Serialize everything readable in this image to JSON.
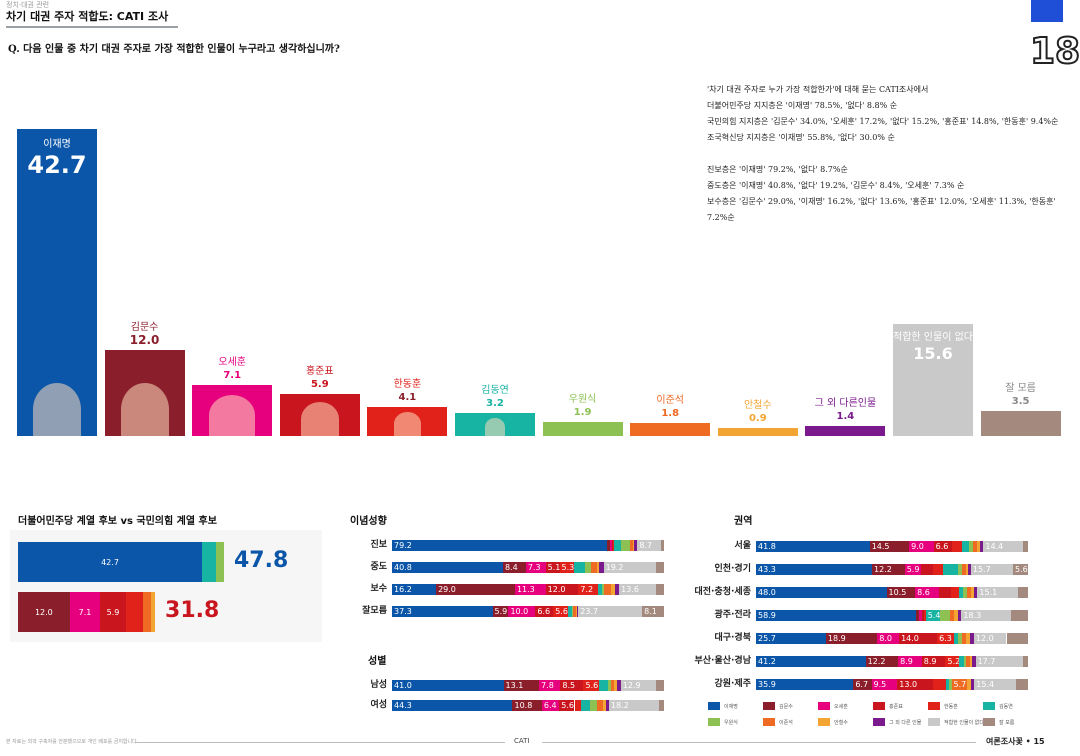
{
  "header": {
    "kicker": "정치·대권 관련",
    "title": "차기 대권 주자 적합도: CATI 조사",
    "question": "Q. 다음 인물 중 차기 대권 주자로 가장 적합한 인물이 누구라고 생각하십니까?",
    "page_badge": "18"
  },
  "summary": [
    "'차기 대권 주자로 누가 가장 적합한가'에 대해 묻는 CATI조사에서",
    "더불어민주당 지지층은 '이재명' 78.5%, '없다' 8.8% 순",
    "국민의힘 지지층은 '김문수' 34.0%, '오세훈' 17.2%, '없다' 15.2%, '홍준표' 14.8%, '한동훈' 9.4%순",
    "조국혁신당 지지층은 '이재명' 55.8%, '없다' 30.0% 순",
    "",
    "진보층은 '이재명' 79.2%, '없다' 8.7%순",
    "중도층은 '이재명' 40.8%, '없다' 19.2%, '김문수' 8.4%, '오세훈' 7.3% 순",
    "보수층은 '김문수' 29.0%, '이재명' 16.2%, '없다' 13.6%, '홍준표' 12.0%, '오세훈' 11.3%, '한동훈' 7.2%순"
  ],
  "colors": {
    "이재명": "#0b56a8",
    "김문수": "#8a1f2b",
    "오세훈": "#e6007e",
    "홍준표": "#c9151e",
    "한동훈": "#e0221b",
    "김동연": "#17b3a3",
    "우원식": "#8dc153",
    "이준석": "#ef6a22",
    "안철수": "#f2a533",
    "그 외 다른 인물": "#7b1a8c",
    "적합한 인물이 없다": "#c9c9c9",
    "잘 모름": "#a4897e"
  },
  "chart_data": [
    {
      "type": "bar",
      "categories": [
        "이재명",
        "김문수",
        "오세훈",
        "홍준표",
        "한동훈",
        "김동연",
        "우원식",
        "이준석",
        "안철수",
        "그 외 다른인물",
        "적합한 인물이 없다",
        "잘 모름"
      ],
      "values": [
        42.7,
        12.0,
        7.1,
        5.9,
        4.1,
        3.2,
        1.9,
        1.8,
        0.9,
        1.4,
        15.6,
        3.5
      ],
      "value_labels": [
        "42.7",
        "12.0",
        "7.1",
        "5.9",
        "4.1",
        "3.2",
        "1.9",
        "1.8",
        "0.9",
        "1.4",
        "15.6",
        "3.5"
      ],
      "ylim": [
        0,
        42.7
      ]
    },
    {
      "type": "bar",
      "title": "더불어민주당 계열 후보 vs 국민의힘 계열 후보",
      "stacked": true,
      "rows": [
        {
          "total": "47.8",
          "segments": [
            {
              "name": "이재명",
              "value": 42.7,
              "label": "42.7"
            },
            {
              "name": "김동연",
              "value": 3.2,
              "label": ""
            },
            {
              "name": "우원식",
              "value": 1.9,
              "label": ""
            }
          ]
        },
        {
          "total": "31.8",
          "segments": [
            {
              "name": "김문수",
              "value": 12.0,
              "label": "12.0"
            },
            {
              "name": "오세훈",
              "value": 7.1,
              "label": "7.1"
            },
            {
              "name": "홍준표",
              "value": 5.9,
              "label": "5.9"
            },
            {
              "name": "한동훈",
              "value": 4.1,
              "label": ""
            },
            {
              "name": "이준석",
              "value": 1.8,
              "label": ""
            },
            {
              "name": "안철수",
              "value": 0.9,
              "label": ""
            }
          ]
        }
      ]
    },
    {
      "type": "bar",
      "stacked": true,
      "series_names": [
        "이재명",
        "김문수",
        "오세훈",
        "홍준표",
        "한동훈",
        "김동연",
        "우원식",
        "이준석",
        "안철수",
        "그 외 다른 인물",
        "적합한 인물이 없다",
        "잘 모름"
      ],
      "groups": [
        {
          "title": "이념성향",
          "rows": [
            {
              "label": "진보",
              "values": [
                79.2,
                1.0,
                0.6,
                0.4,
                0.5,
                2.6,
                3.3,
                1.0,
                0.5,
                1.1,
                8.7,
                1.1
              ],
              "labels": [
                "79.2",
                "",
                "",
                "",
                "",
                "",
                "",
                "",
                "",
                "",
                "8.7",
                ""
              ]
            },
            {
              "label": "중도",
              "values": [
                40.8,
                8.4,
                7.3,
                5.1,
                5.3,
                4.0,
                2.4,
                2.0,
                0.9,
                1.6,
                19.2,
                3.0
              ],
              "labels": [
                "40.8",
                "8.4",
                "7.3",
                "5.1",
                "5.3",
                "",
                "",
                "",
                "",
                "",
                "19.2",
                ""
              ]
            },
            {
              "label": "보수",
              "values": [
                16.2,
                29.0,
                11.3,
                12.0,
                7.2,
                1.5,
                0.8,
                2.5,
                1.5,
                1.5,
                13.6,
                2.9
              ],
              "labels": [
                "16.2",
                "29.0",
                "11.3",
                "12.0",
                "7.2",
                "",
                "",
                "",
                "",
                "",
                "13.6",
                ""
              ]
            },
            {
              "label": "잘모름",
              "values": [
                37.3,
                5.9,
                10.0,
                6.6,
                5.6,
                1.3,
                0.6,
                0.8,
                0.4,
                0.6,
                23.7,
                8.1
              ],
              "labels": [
                "37.3",
                "5.9",
                "10.0",
                "6.6",
                "5.6",
                "",
                "",
                "",
                "",
                "",
                "23.7",
                "8.1"
              ]
            }
          ]
        },
        {
          "title": "성별",
          "rows": [
            {
              "label": "남성",
              "values": [
                41.0,
                13.1,
                7.8,
                8.5,
                5.6,
                3.3,
                1.2,
                1.3,
                0.8,
                1.5,
                12.9,
                3.0
              ],
              "labels": [
                "41.0",
                "13.1",
                "7.8",
                "8.5",
                "5.6",
                "",
                "",
                "",
                "",
                "",
                "12.9",
                ""
              ]
            },
            {
              "label": "여성",
              "values": [
                44.3,
                10.8,
                6.4,
                5.6,
                2.5,
                3.1,
                2.6,
                2.2,
                1.0,
                1.3,
                18.2,
                2.0
              ],
              "labels": [
                "44.3",
                "10.8",
                "6.4",
                "5.6",
                "",
                "",
                "",
                "",
                "",
                "",
                "18.2",
                ""
              ]
            }
          ]
        },
        {
          "title": "권역",
          "rows": [
            {
              "label": "서울",
              "values": [
                41.8,
                14.5,
                9.0,
                6.6,
                3.8,
                2.6,
                1.4,
                1.6,
                0.9,
                1.4,
                14.4,
                2.0
              ],
              "labels": [
                "41.8",
                "14.5",
                "9.0",
                "6.6",
                "",
                "",
                "",
                "",
                "",
                "",
                "14.4",
                ""
              ]
            },
            {
              "label": "인천·경기",
              "values": [
                43.3,
                12.2,
                5.9,
                4.5,
                3.9,
                5.5,
                1.5,
                1.5,
                0.9,
                1.0,
                15.7,
                5.6
              ],
              "labels": [
                "43.3",
                "12.2",
                "5.9",
                "",
                "",
                "",
                "",
                "",
                "",
                "",
                "15.7",
                "5.6"
              ]
            },
            {
              "label": "대전·충청·세종",
              "values": [
                48.0,
                10.5,
                8.6,
                4.5,
                3.0,
                1.5,
                1.6,
                1.5,
                1.0,
                1.2,
                15.1,
                3.5
              ],
              "labels": [
                "48.0",
                "10.5",
                "8.6",
                "",
                "",
                "",
                "",
                "",
                "",
                "",
                "15.1",
                ""
              ]
            },
            {
              "label": "광주·전라",
              "values": [
                58.9,
                1.2,
                1.0,
                0.8,
                0.5,
                5.4,
                3.5,
                1.5,
                1.3,
                1.4,
                18.3,
                6.2
              ],
              "labels": [
                "58.9",
                "",
                "",
                "",
                "",
                "5.4",
                "",
                "",
                "",
                "",
                "18.3",
                ""
              ]
            },
            {
              "label": "대구·경북",
              "values": [
                25.7,
                18.9,
                8.0,
                14.0,
                6.3,
                1.4,
                1.4,
                1.6,
                1.3,
                1.5,
                12.0,
                7.9
              ],
              "labels": [
                "25.7",
                "18.9",
                "8.0",
                "14.0",
                "6.3",
                "",
                "",
                "",
                "",
                "",
                "12.0",
                ""
              ]
            },
            {
              "label": "부산·울산·경남",
              "values": [
                41.2,
                12.2,
                8.9,
                8.9,
                5.2,
                1.6,
                1.0,
                1.4,
                0.8,
                1.3,
                17.7,
                2.0
              ],
              "labels": [
                "41.2",
                "12.2",
                "8.9",
                "8.9",
                "5.2",
                "",
                "",
                "",
                "",
                "",
                "17.7",
                ""
              ]
            },
            {
              "label": "강원·제주",
              "values": [
                35.9,
                6.7,
                9.5,
                13.0,
                4.8,
                1.2,
                1.0,
                5.7,
                1.5,
                1.2,
                15.4,
                4.4
              ],
              "labels": [
                "35.9",
                "6.7",
                "9.5",
                "13.0",
                "",
                "",
                "",
                "5.7",
                "",
                "",
                "15.4",
                ""
              ]
            }
          ]
        }
      ]
    }
  ],
  "legend": [
    "이재명",
    "김문수",
    "오세훈",
    "홍준표",
    "한동훈",
    "김동연",
    "우원식",
    "이준석",
    "안철수",
    "그 외 다른 인물",
    "적합한 인물이 없다",
    "잘 모름"
  ],
  "footer": {
    "note": "본 자료는 외곽 구축자를 안분했으므로 개인 배포를 금지합니다.",
    "center": "CATI",
    "right": "여론조사꽃 • 15"
  }
}
